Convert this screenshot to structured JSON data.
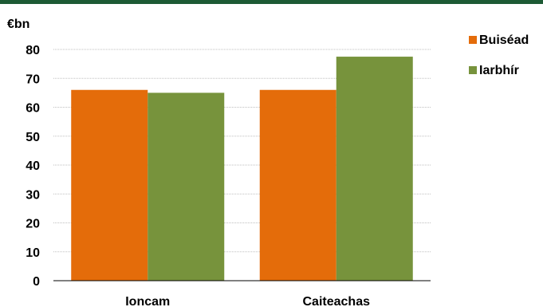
{
  "chart_data": {
    "type": "bar",
    "unit_label": "€bn",
    "categories": [
      "Ioncam",
      "Caiteachas"
    ],
    "series": [
      {
        "name": "Buiséad",
        "color": "#E46C0A",
        "values": [
          66,
          66
        ]
      },
      {
        "name": "Iarbhír",
        "color": "#77933C",
        "values": [
          65,
          77.5
        ]
      }
    ],
    "ylim": [
      0,
      80
    ],
    "yticks": [
      0,
      10,
      20,
      30,
      40,
      50,
      60,
      70,
      80
    ],
    "grid": true,
    "legend": "right",
    "accent_color": "#1D5A34"
  }
}
